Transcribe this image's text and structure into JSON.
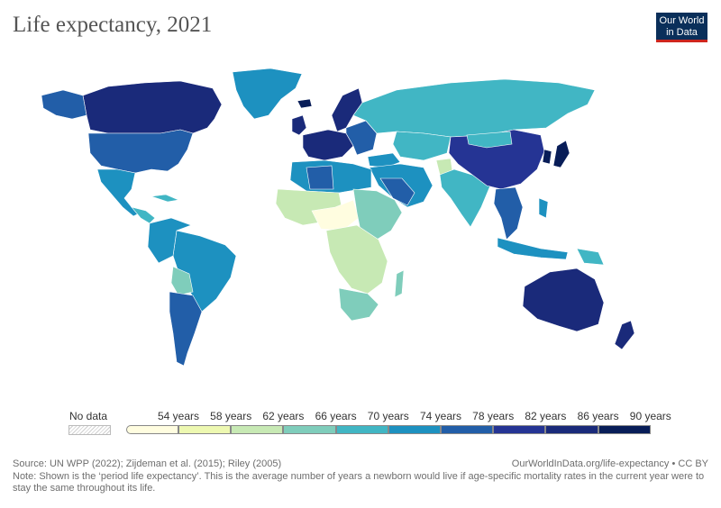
{
  "title": "Life expectancy, 2021",
  "logo": {
    "line1": "Our World",
    "line2": "in Data"
  },
  "legend": {
    "no_data_label": "No data",
    "ticks": [
      "54 years",
      "58 years",
      "62 years",
      "66 years",
      "70 years",
      "74 years",
      "78 years",
      "82 years",
      "86 years",
      "90 years"
    ],
    "colors": [
      "#fffde0",
      "#edf8b1",
      "#c7e9b4",
      "#7fcdbb",
      "#41b6c4",
      "#1d91c0",
      "#225ea8",
      "#253494",
      "#1a2a7a",
      "#081d58"
    ]
  },
  "footer": {
    "source": "Source: UN WPP (2022); Zijdeman et al. (2015); Riley (2005)",
    "credit": "OurWorldInData.org/life-expectancy • CC BY",
    "note": "Note: Shown is the ‘period life expectancy’. This is the average number of years a newborn would live if age-specific mortality rates in the current year were to stay the same throughout its life."
  }
}
